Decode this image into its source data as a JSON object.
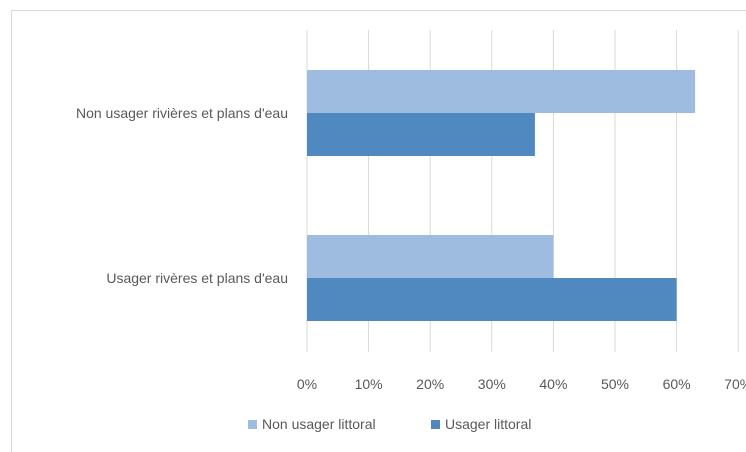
{
  "chart_data": {
    "type": "bar",
    "orientation": "horizontal",
    "title": "",
    "categories": [
      "Non usager rivières et plans d'eau",
      "Usager rivères et plans d'eau"
    ],
    "series": [
      {
        "name": "Non usager littoral",
        "color": "#9dbce0",
        "values": [
          63,
          40
        ]
      },
      {
        "name": "Usager littoral",
        "color": "#5089c0",
        "values": [
          37,
          60
        ]
      }
    ],
    "xlim": [
      0,
      70
    ],
    "x_ticks": [
      "0%",
      "10%",
      "20%",
      "30%",
      "40%",
      "50%",
      "60%",
      "70%"
    ],
    "grid": true,
    "legend_position": "bottom"
  }
}
